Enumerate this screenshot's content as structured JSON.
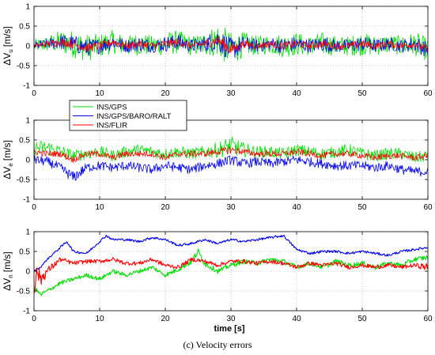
{
  "caption": "(c)   Velocity errors",
  "chart_data": {
    "type": "line",
    "x_range": [
      0,
      60
    ],
    "x_ticks": [
      "0",
      "10",
      "20",
      "30",
      "40",
      "50",
      "60"
    ],
    "xlabel": "time  [s]",
    "legend": {
      "placement": "between-top-and-middle-panels",
      "entries": [
        {
          "name": "INS/GPS",
          "color": "#00dd00"
        },
        {
          "name": "INS/GPS/BARO/RALT",
          "color": "#0000ee"
        },
        {
          "name": "INS/FLIR",
          "color": "#ff0000"
        }
      ]
    },
    "panels": [
      {
        "ylabel_main": "ΔV",
        "ylabel_sub": "u",
        "ylabel_unit": "[m/s]",
        "ylim": [
          -1,
          1
        ],
        "y_ticks": [
          "1",
          "0.5",
          "0",
          "-0.5",
          "-1"
        ],
        "grid": true,
        "series": [
          {
            "color": "#00dd00",
            "x": [
              0,
              2,
              4,
              6,
              8,
              10,
              12,
              14,
              16,
              18,
              20,
              22,
              24,
              26,
              28,
              30,
              32,
              34,
              36,
              38,
              40,
              42,
              44,
              46,
              48,
              50,
              52,
              54,
              56,
              58,
              60
            ],
            "center": [
              0.0,
              0.05,
              0.1,
              0.05,
              -0.05,
              0.0,
              0.1,
              0.0,
              0.05,
              0.0,
              0.05,
              0.1,
              0.0,
              0.05,
              0.15,
              -0.1,
              0.05,
              0.0,
              0.05,
              0.0,
              0.05,
              0.0,
              0.05,
              0.0,
              0.0,
              0.05,
              0.0,
              0.05,
              0.0,
              0.05,
              -0.1
            ],
            "amp": [
              0.15,
              0.2,
              0.3,
              0.35,
              0.35,
              0.3,
              0.3,
              0.25,
              0.3,
              0.25,
              0.3,
              0.3,
              0.25,
              0.3,
              0.45,
              0.45,
              0.3,
              0.25,
              0.25,
              0.3,
              0.3,
              0.25,
              0.3,
              0.25,
              0.25,
              0.3,
              0.25,
              0.25,
              0.25,
              0.3,
              0.3
            ]
          },
          {
            "color": "#0000ee",
            "x": [
              0,
              2,
              4,
              6,
              8,
              10,
              12,
              14,
              16,
              18,
              20,
              22,
              24,
              26,
              28,
              30,
              32,
              34,
              36,
              38,
              40,
              42,
              44,
              46,
              48,
              50,
              52,
              54,
              56,
              58,
              60
            ],
            "center": [
              0.0,
              0.05,
              0.1,
              0.05,
              -0.05,
              0.0,
              0.1,
              0.0,
              0.05,
              0.0,
              0.05,
              0.1,
              0.0,
              0.05,
              0.15,
              -0.1,
              0.05,
              0.0,
              0.05,
              0.0,
              0.05,
              0.0,
              0.05,
              0.0,
              0.0,
              0.05,
              0.0,
              0.05,
              0.0,
              0.05,
              -0.1
            ],
            "amp": [
              0.1,
              0.13,
              0.2,
              0.22,
              0.22,
              0.2,
              0.2,
              0.17,
              0.2,
              0.17,
              0.2,
              0.2,
              0.17,
              0.2,
              0.3,
              0.3,
              0.2,
              0.17,
              0.17,
              0.2,
              0.2,
              0.17,
              0.2,
              0.17,
              0.17,
              0.2,
              0.17,
              0.17,
              0.17,
              0.2,
              0.2
            ]
          },
          {
            "color": "#ff0000",
            "x": [
              0,
              2,
              4,
              6,
              8,
              10,
              12,
              14,
              16,
              18,
              20,
              22,
              24,
              26,
              28,
              30,
              32,
              34,
              36,
              38,
              40,
              42,
              44,
              46,
              48,
              50,
              52,
              54,
              56,
              58,
              60
            ],
            "center": [
              0.0,
              0.05,
              0.1,
              0.05,
              -0.05,
              0.0,
              0.1,
              0.0,
              0.05,
              0.0,
              0.05,
              0.1,
              0.0,
              0.05,
              0.15,
              -0.1,
              0.05,
              0.0,
              0.05,
              0.0,
              0.05,
              0.0,
              0.05,
              0.0,
              0.0,
              0.05,
              0.0,
              0.05,
              0.0,
              0.05,
              -0.1
            ],
            "amp": [
              0.06,
              0.08,
              0.1,
              0.12,
              0.12,
              0.1,
              0.1,
              0.09,
              0.1,
              0.09,
              0.1,
              0.1,
              0.09,
              0.1,
              0.15,
              0.15,
              0.1,
              0.09,
              0.09,
              0.1,
              0.1,
              0.09,
              0.1,
              0.09,
              0.09,
              0.1,
              0.09,
              0.09,
              0.09,
              0.1,
              0.1
            ]
          }
        ]
      },
      {
        "ylabel_main": "ΔV",
        "ylabel_sub": "e",
        "ylabel_unit": "[m/s]",
        "ylim": [
          -1,
          1
        ],
        "y_ticks": [
          "1",
          "0.5",
          "0",
          "-0.5",
          "-1"
        ],
        "grid": true,
        "series": [
          {
            "color": "#00dd00",
            "x": [
              0,
              2,
              4,
              6,
              8,
              10,
              12,
              14,
              16,
              18,
              20,
              22,
              24,
              26,
              28,
              30,
              32,
              34,
              36,
              38,
              40,
              42,
              44,
              46,
              48,
              50,
              52,
              54,
              56,
              58,
              60
            ],
            "center": [
              0.3,
              0.3,
              0.2,
              0.1,
              0.15,
              0.2,
              0.1,
              0.2,
              0.25,
              0.2,
              0.15,
              0.2,
              0.15,
              0.2,
              0.25,
              0.35,
              0.25,
              0.2,
              0.2,
              0.15,
              0.25,
              0.2,
              0.15,
              0.2,
              0.25,
              0.15,
              0.1,
              0.15,
              0.15,
              0.05,
              0.1
            ],
            "amp": [
              0.18,
              0.2,
              0.18,
              0.15,
              0.15,
              0.15,
              0.15,
              0.15,
              0.15,
              0.15,
              0.15,
              0.15,
              0.15,
              0.15,
              0.2,
              0.25,
              0.18,
              0.15,
              0.15,
              0.15,
              0.15,
              0.15,
              0.15,
              0.15,
              0.15,
              0.15,
              0.15,
              0.15,
              0.15,
              0.15,
              0.15
            ]
          },
          {
            "color": "#0000ee",
            "x": [
              0,
              2,
              4,
              6,
              8,
              10,
              12,
              14,
              16,
              18,
              20,
              22,
              24,
              26,
              28,
              30,
              32,
              34,
              36,
              38,
              40,
              42,
              44,
              46,
              48,
              50,
              52,
              54,
              56,
              58,
              60
            ],
            "center": [
              0.0,
              -0.05,
              -0.2,
              -0.45,
              -0.2,
              -0.15,
              -0.2,
              -0.15,
              -0.2,
              -0.25,
              -0.15,
              -0.2,
              -0.25,
              -0.15,
              -0.1,
              0.0,
              -0.1,
              -0.05,
              -0.1,
              -0.05,
              0.0,
              -0.05,
              -0.1,
              -0.15,
              -0.15,
              -0.15,
              -0.2,
              -0.15,
              -0.25,
              -0.3,
              -0.3
            ],
            "amp": [
              0.12,
              0.12,
              0.12,
              0.15,
              0.12,
              0.12,
              0.12,
              0.12,
              0.12,
              0.12,
              0.12,
              0.12,
              0.12,
              0.12,
              0.12,
              0.12,
              0.12,
              0.12,
              0.12,
              0.12,
              0.12,
              0.12,
              0.12,
              0.12,
              0.12,
              0.12,
              0.12,
              0.12,
              0.12,
              0.12,
              0.12
            ]
          },
          {
            "color": "#ff0000",
            "x": [
              0,
              2,
              4,
              6,
              8,
              10,
              12,
              14,
              16,
              18,
              20,
              22,
              24,
              26,
              28,
              30,
              32,
              34,
              36,
              38,
              40,
              42,
              44,
              46,
              48,
              50,
              52,
              54,
              56,
              58,
              60
            ],
            "center": [
              0.2,
              0.15,
              0.15,
              0.0,
              0.15,
              0.15,
              0.05,
              0.15,
              0.15,
              0.15,
              0.05,
              0.15,
              0.15,
              0.15,
              0.2,
              0.25,
              0.2,
              0.15,
              0.15,
              0.15,
              0.2,
              0.15,
              0.1,
              0.15,
              0.15,
              0.1,
              0.05,
              0.1,
              0.1,
              0.05,
              0.1
            ],
            "amp": [
              0.08,
              0.08,
              0.08,
              0.08,
              0.08,
              0.08,
              0.08,
              0.08,
              0.08,
              0.08,
              0.08,
              0.08,
              0.08,
              0.08,
              0.08,
              0.1,
              0.08,
              0.08,
              0.08,
              0.08,
              0.08,
              0.08,
              0.08,
              0.08,
              0.08,
              0.08,
              0.08,
              0.08,
              0.08,
              0.08,
              0.08
            ]
          }
        ]
      },
      {
        "ylabel_main": "ΔV",
        "ylabel_sub": "n",
        "ylabel_unit": "[m/s]",
        "ylim": [
          -1,
          1
        ],
        "y_ticks": [
          "1",
          "0.5",
          "0",
          "-0.5",
          "-1"
        ],
        "grid": true,
        "series": [
          {
            "color": "#00dd00",
            "x": [
              0,
              1,
              2,
              4,
              6,
              8,
              10,
              12,
              14,
              16,
              18,
              20,
              22,
              24,
              25,
              26,
              28,
              30,
              32,
              34,
              36,
              38,
              40,
              42,
              44,
              46,
              48,
              50,
              52,
              54,
              56,
              58,
              60
            ],
            "center": [
              -0.4,
              -0.6,
              -0.5,
              -0.3,
              -0.2,
              -0.1,
              -0.2,
              0.0,
              -0.1,
              0.0,
              0.1,
              -0.1,
              0.05,
              0.25,
              0.5,
              0.2,
              0.0,
              0.15,
              0.25,
              0.2,
              0.3,
              0.25,
              0.1,
              0.2,
              0.1,
              0.25,
              0.15,
              0.2,
              0.1,
              0.2,
              0.15,
              0.3,
              0.35
            ],
            "amp": [
              0.05,
              0.06,
              0.05,
              0.05,
              0.05,
              0.05,
              0.05,
              0.05,
              0.05,
              0.05,
              0.05,
              0.05,
              0.06,
              0.08,
              0.08,
              0.08,
              0.06,
              0.06,
              0.06,
              0.06,
              0.06,
              0.06,
              0.06,
              0.06,
              0.06,
              0.06,
              0.06,
              0.06,
              0.06,
              0.06,
              0.06,
              0.06,
              0.06
            ]
          },
          {
            "color": "#0000ee",
            "x": [
              0,
              1,
              2,
              4,
              5,
              6,
              8,
              10,
              11,
              12,
              14,
              16,
              18,
              20,
              22,
              24,
              26,
              28,
              30,
              32,
              34,
              36,
              38,
              40,
              42,
              44,
              46,
              48,
              50,
              52,
              54,
              56,
              58,
              60
            ],
            "center": [
              0.0,
              0.1,
              0.3,
              0.6,
              0.75,
              0.5,
              0.45,
              0.75,
              0.9,
              0.8,
              0.8,
              0.75,
              0.85,
              0.8,
              0.65,
              0.7,
              0.8,
              0.7,
              0.8,
              0.75,
              0.8,
              0.85,
              0.9,
              0.55,
              0.45,
              0.5,
              0.5,
              0.45,
              0.5,
              0.45,
              0.4,
              0.5,
              0.55,
              0.6
            ],
            "amp": [
              0.02,
              0.02,
              0.02,
              0.03,
              0.03,
              0.03,
              0.03,
              0.03,
              0.03,
              0.03,
              0.03,
              0.03,
              0.03,
              0.03,
              0.03,
              0.03,
              0.03,
              0.03,
              0.03,
              0.03,
              0.03,
              0.03,
              0.03,
              0.03,
              0.03,
              0.03,
              0.03,
              0.03,
              0.03,
              0.03,
              0.03,
              0.03,
              0.03,
              0.03
            ]
          },
          {
            "color": "#ff0000",
            "x": [
              0,
              0.5,
              1,
              2,
              4,
              6,
              8,
              10,
              12,
              14,
              16,
              18,
              20,
              22,
              24,
              26,
              28,
              30,
              32,
              34,
              36,
              38,
              40,
              42,
              44,
              46,
              48,
              50,
              52,
              54,
              56,
              58,
              60
            ],
            "center": [
              -0.4,
              0.0,
              -0.2,
              0.0,
              0.3,
              0.2,
              0.25,
              0.25,
              0.3,
              0.2,
              0.2,
              0.3,
              0.15,
              0.1,
              0.3,
              0.25,
              0.15,
              0.25,
              0.25,
              0.2,
              0.25,
              0.2,
              0.1,
              0.2,
              0.15,
              0.2,
              0.1,
              0.15,
              0.1,
              0.15,
              0.1,
              0.15,
              0.1
            ],
            "amp": [
              0.25,
              0.2,
              0.2,
              0.1,
              0.06,
              0.05,
              0.05,
              0.05,
              0.05,
              0.05,
              0.05,
              0.05,
              0.05,
              0.05,
              0.05,
              0.05,
              0.05,
              0.05,
              0.05,
              0.05,
              0.05,
              0.05,
              0.05,
              0.05,
              0.05,
              0.05,
              0.05,
              0.05,
              0.05,
              0.05,
              0.05,
              0.05,
              0.1
            ]
          }
        ]
      }
    ]
  }
}
